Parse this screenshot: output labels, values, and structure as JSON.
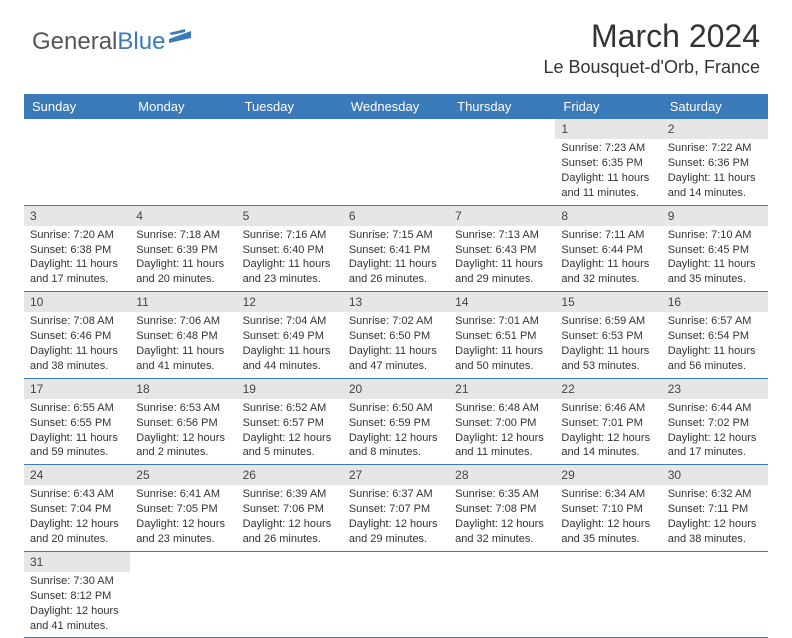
{
  "logo": {
    "text1": "General",
    "text2": "Blue"
  },
  "title": "March 2024",
  "location": "Le Bousquet-d'Orb, France",
  "colors": {
    "header_bg": "#3a7ab8",
    "header_text": "#ffffff",
    "daynum_bg": "#e6e6e6",
    "rule": "#3a7ab8"
  },
  "day_names": [
    "Sunday",
    "Monday",
    "Tuesday",
    "Wednesday",
    "Thursday",
    "Friday",
    "Saturday"
  ],
  "weeks": [
    [
      null,
      null,
      null,
      null,
      null,
      {
        "n": "1",
        "sr": "Sunrise: 7:23 AM",
        "ss": "Sunset: 6:35 PM",
        "d1": "Daylight: 11 hours",
        "d2": "and 11 minutes."
      },
      {
        "n": "2",
        "sr": "Sunrise: 7:22 AM",
        "ss": "Sunset: 6:36 PM",
        "d1": "Daylight: 11 hours",
        "d2": "and 14 minutes."
      }
    ],
    [
      {
        "n": "3",
        "sr": "Sunrise: 7:20 AM",
        "ss": "Sunset: 6:38 PM",
        "d1": "Daylight: 11 hours",
        "d2": "and 17 minutes."
      },
      {
        "n": "4",
        "sr": "Sunrise: 7:18 AM",
        "ss": "Sunset: 6:39 PM",
        "d1": "Daylight: 11 hours",
        "d2": "and 20 minutes."
      },
      {
        "n": "5",
        "sr": "Sunrise: 7:16 AM",
        "ss": "Sunset: 6:40 PM",
        "d1": "Daylight: 11 hours",
        "d2": "and 23 minutes."
      },
      {
        "n": "6",
        "sr": "Sunrise: 7:15 AM",
        "ss": "Sunset: 6:41 PM",
        "d1": "Daylight: 11 hours",
        "d2": "and 26 minutes."
      },
      {
        "n": "7",
        "sr": "Sunrise: 7:13 AM",
        "ss": "Sunset: 6:43 PM",
        "d1": "Daylight: 11 hours",
        "d2": "and 29 minutes."
      },
      {
        "n": "8",
        "sr": "Sunrise: 7:11 AM",
        "ss": "Sunset: 6:44 PM",
        "d1": "Daylight: 11 hours",
        "d2": "and 32 minutes."
      },
      {
        "n": "9",
        "sr": "Sunrise: 7:10 AM",
        "ss": "Sunset: 6:45 PM",
        "d1": "Daylight: 11 hours",
        "d2": "and 35 minutes."
      }
    ],
    [
      {
        "n": "10",
        "sr": "Sunrise: 7:08 AM",
        "ss": "Sunset: 6:46 PM",
        "d1": "Daylight: 11 hours",
        "d2": "and 38 minutes."
      },
      {
        "n": "11",
        "sr": "Sunrise: 7:06 AM",
        "ss": "Sunset: 6:48 PM",
        "d1": "Daylight: 11 hours",
        "d2": "and 41 minutes."
      },
      {
        "n": "12",
        "sr": "Sunrise: 7:04 AM",
        "ss": "Sunset: 6:49 PM",
        "d1": "Daylight: 11 hours",
        "d2": "and 44 minutes."
      },
      {
        "n": "13",
        "sr": "Sunrise: 7:02 AM",
        "ss": "Sunset: 6:50 PM",
        "d1": "Daylight: 11 hours",
        "d2": "and 47 minutes."
      },
      {
        "n": "14",
        "sr": "Sunrise: 7:01 AM",
        "ss": "Sunset: 6:51 PM",
        "d1": "Daylight: 11 hours",
        "d2": "and 50 minutes."
      },
      {
        "n": "15",
        "sr": "Sunrise: 6:59 AM",
        "ss": "Sunset: 6:53 PM",
        "d1": "Daylight: 11 hours",
        "d2": "and 53 minutes."
      },
      {
        "n": "16",
        "sr": "Sunrise: 6:57 AM",
        "ss": "Sunset: 6:54 PM",
        "d1": "Daylight: 11 hours",
        "d2": "and 56 minutes."
      }
    ],
    [
      {
        "n": "17",
        "sr": "Sunrise: 6:55 AM",
        "ss": "Sunset: 6:55 PM",
        "d1": "Daylight: 11 hours",
        "d2": "and 59 minutes."
      },
      {
        "n": "18",
        "sr": "Sunrise: 6:53 AM",
        "ss": "Sunset: 6:56 PM",
        "d1": "Daylight: 12 hours",
        "d2": "and 2 minutes."
      },
      {
        "n": "19",
        "sr": "Sunrise: 6:52 AM",
        "ss": "Sunset: 6:57 PM",
        "d1": "Daylight: 12 hours",
        "d2": "and 5 minutes."
      },
      {
        "n": "20",
        "sr": "Sunrise: 6:50 AM",
        "ss": "Sunset: 6:59 PM",
        "d1": "Daylight: 12 hours",
        "d2": "and 8 minutes."
      },
      {
        "n": "21",
        "sr": "Sunrise: 6:48 AM",
        "ss": "Sunset: 7:00 PM",
        "d1": "Daylight: 12 hours",
        "d2": "and 11 minutes."
      },
      {
        "n": "22",
        "sr": "Sunrise: 6:46 AM",
        "ss": "Sunset: 7:01 PM",
        "d1": "Daylight: 12 hours",
        "d2": "and 14 minutes."
      },
      {
        "n": "23",
        "sr": "Sunrise: 6:44 AM",
        "ss": "Sunset: 7:02 PM",
        "d1": "Daylight: 12 hours",
        "d2": "and 17 minutes."
      }
    ],
    [
      {
        "n": "24",
        "sr": "Sunrise: 6:43 AM",
        "ss": "Sunset: 7:04 PM",
        "d1": "Daylight: 12 hours",
        "d2": "and 20 minutes."
      },
      {
        "n": "25",
        "sr": "Sunrise: 6:41 AM",
        "ss": "Sunset: 7:05 PM",
        "d1": "Daylight: 12 hours",
        "d2": "and 23 minutes."
      },
      {
        "n": "26",
        "sr": "Sunrise: 6:39 AM",
        "ss": "Sunset: 7:06 PM",
        "d1": "Daylight: 12 hours",
        "d2": "and 26 minutes."
      },
      {
        "n": "27",
        "sr": "Sunrise: 6:37 AM",
        "ss": "Sunset: 7:07 PM",
        "d1": "Daylight: 12 hours",
        "d2": "and 29 minutes."
      },
      {
        "n": "28",
        "sr": "Sunrise: 6:35 AM",
        "ss": "Sunset: 7:08 PM",
        "d1": "Daylight: 12 hours",
        "d2": "and 32 minutes."
      },
      {
        "n": "29",
        "sr": "Sunrise: 6:34 AM",
        "ss": "Sunset: 7:10 PM",
        "d1": "Daylight: 12 hours",
        "d2": "and 35 minutes."
      },
      {
        "n": "30",
        "sr": "Sunrise: 6:32 AM",
        "ss": "Sunset: 7:11 PM",
        "d1": "Daylight: 12 hours",
        "d2": "and 38 minutes."
      }
    ],
    [
      {
        "n": "31",
        "sr": "Sunrise: 7:30 AM",
        "ss": "Sunset: 8:12 PM",
        "d1": "Daylight: 12 hours",
        "d2": "and 41 minutes."
      },
      null,
      null,
      null,
      null,
      null,
      null
    ]
  ]
}
